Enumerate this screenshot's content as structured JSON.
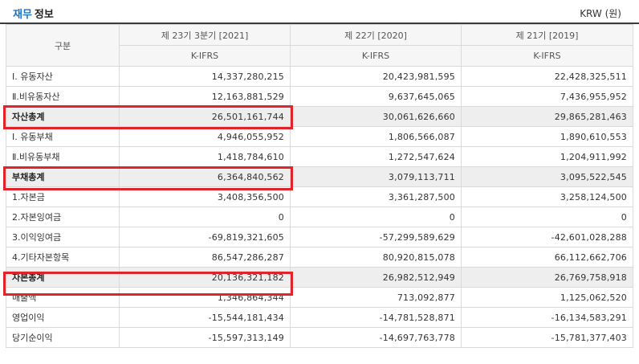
{
  "header": {
    "title_accent": "재무",
    "title_rest": "정보",
    "currency": "KRW (원)"
  },
  "columns": {
    "label_header": "구분",
    "periods": [
      "제 23기 3분기 [2021]",
      "제 22기 [2020]",
      "제 21기 [2019]"
    ],
    "standards": [
      "K-IFRS",
      "K-IFRS",
      "K-IFRS"
    ]
  },
  "rows": [
    {
      "label": "Ⅰ. 유동자산",
      "values": [
        "14,337,280,215",
        "20,423,981,595",
        "22,428,325,511"
      ]
    },
    {
      "label": "Ⅱ.비유동자산",
      "values": [
        "12,163,881,529",
        "9,637,645,065",
        "7,436,955,952"
      ]
    },
    {
      "label": "자산총계",
      "values": [
        "26,501,161,744",
        "30,061,626,660",
        "29,865,281,463"
      ]
    },
    {
      "label": "Ⅰ. 유동부채",
      "values": [
        "4,946,055,952",
        "1,806,566,087",
        "1,890,610,553"
      ]
    },
    {
      "label": "Ⅱ.비유동부채",
      "values": [
        "1,418,784,610",
        "1,272,547,624",
        "1,204,911,992"
      ]
    },
    {
      "label": "부채총계",
      "values": [
        "6,364,840,562",
        "3,079,113,711",
        "3,095,522,545"
      ]
    },
    {
      "label": "1.자본금",
      "values": [
        "3,408,356,500",
        "3,361,287,500",
        "3,258,124,500"
      ]
    },
    {
      "label": "2.자본잉여금",
      "values": [
        "0",
        "0",
        "0"
      ]
    },
    {
      "label": "3.이익잉여금",
      "values": [
        "-69,819,321,605",
        "-57,299,589,629",
        "-42,601,028,288"
      ]
    },
    {
      "label": "4.기타자본항목",
      "values": [
        "86,547,286,287",
        "80,920,815,078",
        "66,112,662,706"
      ]
    },
    {
      "label": "자본총계",
      "values": [
        "20,136,321,182",
        "26,982,512,949",
        "26,769,758,918"
      ]
    },
    {
      "label": "매출액",
      "values": [
        "1,346,864,344",
        "713,092,877",
        "1,125,062,520"
      ]
    },
    {
      "label": "영업이익",
      "values": [
        "-15,544,181,434",
        "-14,781,528,871",
        "-16,134,583,291"
      ]
    },
    {
      "label": "당기순이익",
      "values": [
        "-15,597,313,149",
        "-14,697,763,778",
        "-15,781,377,403"
      ]
    }
  ]
}
